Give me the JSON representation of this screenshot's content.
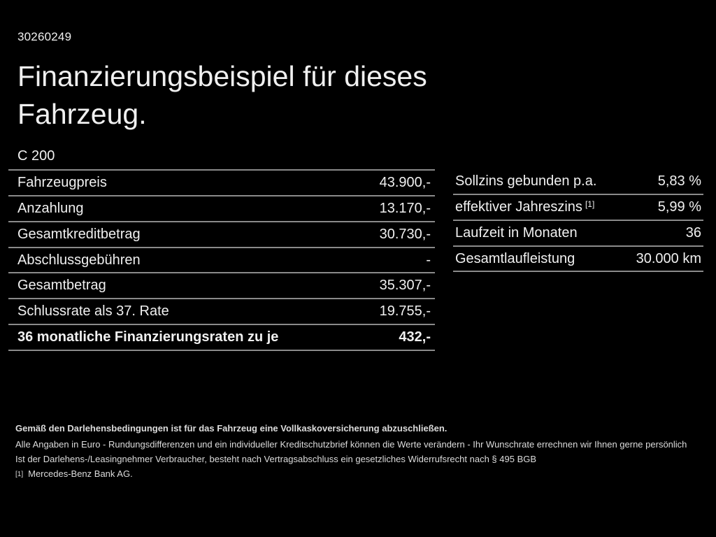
{
  "page": {
    "doc_number": "30260249",
    "title_line1": "Finanzierungsbeispiel für dieses",
    "title_line2": "Fahrzeug.",
    "model": "C 200"
  },
  "left_table": {
    "rows": [
      {
        "label": "Fahrzeugpreis",
        "value": "43.900,-"
      },
      {
        "label": "Anzahlung",
        "value": "13.170,-"
      },
      {
        "label": "Gesamtkreditbetrag",
        "value": "30.730,-"
      },
      {
        "label": "Abschlussgebühren",
        "value": "-"
      },
      {
        "label": "Gesamtbetrag",
        "value": "35.307,-"
      },
      {
        "label": "Schlussrate als 37. Rate",
        "value": "19.755,-"
      },
      {
        "label": "36 monatliche Finanzierungsraten zu je",
        "value": "432,-"
      }
    ]
  },
  "right_table": {
    "rows": [
      {
        "label": "Sollzins gebunden p.a.",
        "value": "5,83 %"
      },
      {
        "label": "effektiver Jahreszins",
        "superscript": "[1]",
        "value": "5,99 %"
      },
      {
        "label": "Laufzeit in Monaten",
        "value": "36"
      },
      {
        "label": "Gesamtlaufleistung",
        "value": "30.000 km"
      }
    ]
  },
  "footer": {
    "insurance_note": "Gemäß den Darlehensbedingungen ist für das Fahrzeug eine Vollkaskoversicherung abzuschließen.",
    "disclaimer_line1": "Alle Angaben in Euro - Rundungsdifferenzen und ein individueller Kreditschutzbrief können die Werte verändern - Ihr Wunschrate errechnen wir Ihnen gerne persönlich",
    "disclaimer_line2": "Ist der Darlehens-/Leasingnehmer Verbraucher, besteht nach Vertragsabschluss ein gesetzliches Widerrufsrecht nach § 495 BGB",
    "footnote_marker": "[1]",
    "footnote_text": "Mercedes-Benz Bank AG."
  },
  "colors": {
    "background": "#000000",
    "text": "#f0f0f0",
    "footer_text": "#dcdcdc",
    "divider": "#8a8a8a"
  }
}
